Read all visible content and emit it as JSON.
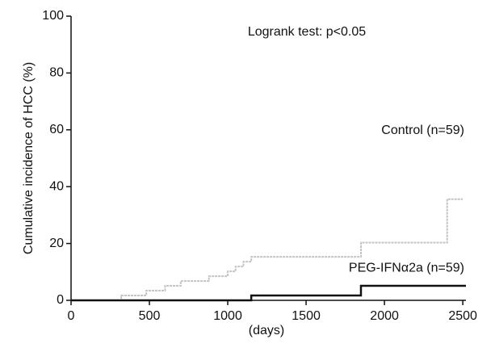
{
  "chart_data": {
    "type": "line",
    "step": "post",
    "ylabel": "Cumulative incidence of HCC (%)",
    "xlabel": "(days)",
    "annotation": "Logrank test: p<0.05",
    "xlim": [
      0,
      2520
    ],
    "xticks": [
      0,
      500,
      1000,
      1500,
      2000,
      2500
    ],
    "ylim": [
      0,
      100
    ],
    "yticks": [
      0,
      20,
      40,
      60,
      80,
      100
    ],
    "series": [
      {
        "name": "Control (n=59)",
        "color": "#c4c4c4",
        "x": [
          0,
          320,
          480,
          600,
          700,
          880,
          1000,
          1050,
          1100,
          1150,
          1850,
          2400,
          2500
        ],
        "values": [
          0,
          1.7,
          3.4,
          5.1,
          6.8,
          8.5,
          10.2,
          11.9,
          13.6,
          15.3,
          20.3,
          35.6,
          35.6
        ]
      },
      {
        "name": "PEG-IFNα2a (n=59)",
        "color": "#111111",
        "x": [
          0,
          1150,
          1850,
          2520
        ],
        "values": [
          0,
          1.7,
          5.1,
          5.1
        ]
      }
    ]
  }
}
